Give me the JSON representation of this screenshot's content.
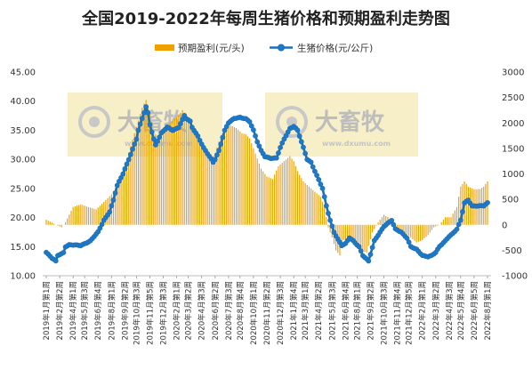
{
  "chart_data": {
    "type": "bar+line",
    "title": "全国2019-2022年每周生猪价格和预期盈利走势图",
    "watermark": {
      "brand": "大畜牧",
      "url": "www.dxumu.com"
    },
    "colors": {
      "bar": "#F0A000",
      "line": "#1B6FB5",
      "line_face": "#1F78C8",
      "watermark_bg": "#F6EFC8",
      "watermark_text": "#B5B5B5"
    },
    "y_left": {
      "min": 10,
      "max": 45,
      "ticks": [
        "10.00",
        "15.00",
        "20.00",
        "25.00",
        "30.00",
        "35.00",
        "40.00",
        "45.00"
      ]
    },
    "y_right": {
      "min": -1000,
      "max": 3000,
      "ticks": [
        "-1000",
        "-500",
        "0",
        "500",
        "1000",
        "1500",
        "2000",
        "2500",
        "3000"
      ]
    },
    "x_labels": [
      "2019年1月第1周",
      "2019年2月第2周",
      "2019年4月第1周",
      "2019年5月第3周",
      "2019年6月第4周",
      "2019年8月第1周",
      "2019年9月第2周",
      "2019年10月第3周",
      "2019年11月第5周",
      "2019年12月第3周",
      "2020年2月第1周",
      "2020年3月第2周",
      "2020年4月第3周",
      "2020年6月第2周",
      "2020年7月第3周",
      "2020年8月第4周",
      "2020年10月第1周",
      "2020年11月第2周",
      "2020年12月第3周",
      "2021年1月第4周",
      "2021年3月第1周",
      "2021年4月第2周",
      "2021年5月第3周",
      "2021年6月第4周",
      "2021年8月第1周",
      "2021年9月第2周",
      "2021年10月第3周",
      "2021年11月第4周",
      "2021年12月第5周",
      "2022年2月第1周",
      "2022年3月第2周",
      "2022年4月第3周",
      "2022年5月第4周",
      "2022年6月第5周",
      "2022年8月第1周"
    ],
    "legend": [
      {
        "name": "预期盈利(元/头)",
        "kind": "bar"
      },
      {
        "name": "生猪价格(元/公斤)",
        "kind": "line"
      }
    ],
    "series_price": {
      "name": "生猪价格(元/公斤)",
      "axis": "left",
      "key_points": [
        [
          0,
          14.0
        ],
        [
          3,
          13.0
        ],
        [
          5,
          12.5
        ],
        [
          6,
          13.5
        ],
        [
          8,
          13.8
        ],
        [
          9,
          14.0
        ],
        [
          10,
          15.0
        ],
        [
          12,
          15.3
        ],
        [
          18,
          15.2
        ],
        [
          23,
          16.0
        ],
        [
          27,
          17.5
        ],
        [
          30,
          19.5
        ],
        [
          33,
          21.0
        ],
        [
          35,
          23.0
        ],
        [
          37,
          25.5
        ],
        [
          40,
          27.5
        ],
        [
          43,
          30.0
        ],
        [
          47,
          33.5
        ],
        [
          48,
          35.0
        ],
        [
          51,
          38.0
        ],
        [
          52,
          39.0
        ],
        [
          53,
          38.0
        ],
        [
          54,
          36.0
        ],
        [
          56,
          33.5
        ],
        [
          57,
          32.5
        ],
        [
          60,
          34.5
        ],
        [
          63,
          35.5
        ],
        [
          66,
          35.0
        ],
        [
          69,
          35.5
        ],
        [
          72,
          37.5
        ],
        [
          73,
          37.0
        ],
        [
          75,
          36.5
        ],
        [
          76,
          35.5
        ],
        [
          79,
          34.0
        ],
        [
          82,
          32.0
        ],
        [
          85,
          30.5
        ],
        [
          87,
          29.5
        ],
        [
          88,
          30.0
        ],
        [
          90,
          31.5
        ],
        [
          93,
          35.0
        ],
        [
          95,
          36.3
        ],
        [
          98,
          37.0
        ],
        [
          101,
          37.2
        ],
        [
          104,
          37.0
        ],
        [
          106,
          36.5
        ],
        [
          108,
          35.0
        ],
        [
          110,
          33.0
        ],
        [
          112,
          31.5
        ],
        [
          114,
          30.5
        ],
        [
          117,
          30.2
        ],
        [
          120,
          30.2
        ],
        [
          122,
          32.0
        ],
        [
          124,
          33.5
        ],
        [
          127,
          35.3
        ],
        [
          129,
          35.7
        ],
        [
          131,
          35.0
        ],
        [
          133,
          33.0
        ],
        [
          136,
          30.0
        ],
        [
          138,
          29.5
        ],
        [
          140,
          28.0
        ],
        [
          142,
          26.5
        ],
        [
          144,
          25.0
        ],
        [
          146,
          22.0
        ],
        [
          148,
          19.5
        ],
        [
          150,
          17.5
        ],
        [
          152,
          16.3
        ],
        [
          154,
          15.2
        ],
        [
          156,
          15.5
        ],
        [
          158,
          16.5
        ],
        [
          160,
          16.0
        ],
        [
          163,
          15.0
        ],
        [
          165,
          13.5
        ],
        [
          168,
          12.5
        ],
        [
          171,
          16.0
        ],
        [
          174,
          17.5
        ],
        [
          176,
          18.5
        ],
        [
          178,
          19.0
        ],
        [
          180,
          19.5
        ],
        [
          182,
          18.0
        ],
        [
          185,
          17.5
        ],
        [
          188,
          16.5
        ],
        [
          190,
          15.0
        ],
        [
          193,
          14.5
        ],
        [
          196,
          13.5
        ],
        [
          199,
          13.3
        ],
        [
          201,
          13.5
        ],
        [
          203,
          14.0
        ],
        [
          205,
          15.0
        ],
        [
          208,
          16.0
        ],
        [
          210,
          16.8
        ],
        [
          212,
          17.3
        ],
        [
          214,
          18.0
        ],
        [
          216,
          19.5
        ],
        [
          218,
          22.5
        ],
        [
          220,
          23.0
        ],
        [
          222,
          22.0
        ],
        [
          225,
          22.0
        ],
        [
          228,
          22.0
        ],
        [
          230,
          22.5
        ]
      ]
    },
    "series_profit": {
      "name": "预期盈利(元/头)",
      "axis": "right",
      "key_points": [
        [
          0,
          100
        ],
        [
          5,
          0
        ],
        [
          8,
          -50
        ],
        [
          10,
          50
        ],
        [
          14,
          350
        ],
        [
          18,
          400
        ],
        [
          22,
          350
        ],
        [
          26,
          300
        ],
        [
          30,
          450
        ],
        [
          34,
          600
        ],
        [
          38,
          850
        ],
        [
          42,
          1300
        ],
        [
          46,
          1800
        ],
        [
          50,
          2300
        ],
        [
          52,
          2450
        ],
        [
          54,
          2200
        ],
        [
          56,
          1850
        ],
        [
          58,
          1700
        ],
        [
          60,
          1850
        ],
        [
          63,
          1950
        ],
        [
          66,
          2050
        ],
        [
          69,
          2150
        ],
        [
          71,
          2250
        ],
        [
          73,
          2150
        ],
        [
          75,
          2000
        ],
        [
          78,
          1800
        ],
        [
          81,
          1600
        ],
        [
          84,
          1450
        ],
        [
          86,
          1300
        ],
        [
          88,
          1400
        ],
        [
          91,
          1750
        ],
        [
          94,
          1900
        ],
        [
          96,
          1950
        ],
        [
          99,
          1900
        ],
        [
          102,
          1800
        ],
        [
          104,
          1780
        ],
        [
          106,
          1700
        ],
        [
          108,
          1500
        ],
        [
          110,
          1300
        ],
        [
          112,
          1100
        ],
        [
          115,
          950
        ],
        [
          118,
          900
        ],
        [
          121,
          1150
        ],
        [
          124,
          1250
        ],
        [
          127,
          1350
        ],
        [
          129,
          1250
        ],
        [
          131,
          1050
        ],
        [
          134,
          850
        ],
        [
          137,
          750
        ],
        [
          140,
          650
        ],
        [
          143,
          550
        ],
        [
          145,
          350
        ],
        [
          147,
          -50
        ],
        [
          149,
          -250
        ],
        [
          151,
          -500
        ],
        [
          153,
          -600
        ],
        [
          155,
          -300
        ],
        [
          158,
          -300
        ],
        [
          161,
          -400
        ],
        [
          164,
          -500
        ],
        [
          167,
          -550
        ],
        [
          170,
          -150
        ],
        [
          173,
          50
        ],
        [
          176,
          200
        ],
        [
          178,
          150
        ],
        [
          181,
          -50
        ],
        [
          184,
          -100
        ],
        [
          187,
          -150
        ],
        [
          190,
          -250
        ],
        [
          193,
          -350
        ],
        [
          196,
          -300
        ],
        [
          199,
          -200
        ],
        [
          202,
          -50
        ],
        [
          205,
          0
        ],
        [
          208,
          150
        ],
        [
          211,
          150
        ],
        [
          214,
          350
        ],
        [
          216,
          750
        ],
        [
          218,
          850
        ],
        [
          220,
          750
        ],
        [
          223,
          700
        ],
        [
          226,
          700
        ],
        [
          228,
          750
        ],
        [
          230,
          850
        ]
      ]
    }
  }
}
